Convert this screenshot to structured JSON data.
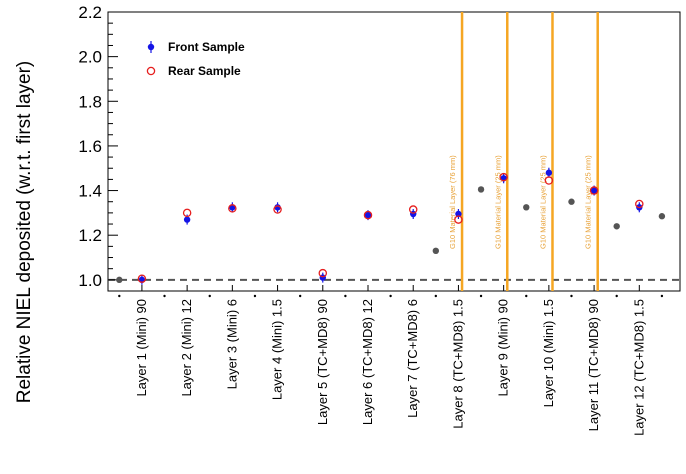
{
  "chart_data": {
    "type": "scatter",
    "title": "",
    "ylabel": "Relative NIEL deposited (w.r.t. first layer)",
    "xlabel": "",
    "ylim": [
      0.95,
      2.2
    ],
    "yticks": [
      1.0,
      1.2,
      1.4,
      1.6,
      1.8,
      2.0,
      2.2
    ],
    "ytick_labels": [
      "1.0",
      "1.2",
      "1.4",
      "1.6",
      "1.8",
      "2.0",
      "2.2"
    ],
    "categories": [
      "Layer 1 (Mini) 90",
      "Layer 2 (Mini) 12",
      "Layer 3 (Mini) 6",
      "Layer 4 (Mini) 1.5",
      "Layer 5 (TC+MD8) 90",
      "Layer 6 (TC+MD8) 12",
      "Layer 7 (TC+MD8) 6",
      "Layer 8 (TC+MD8) 1.5",
      "Layer 9 (Mini) 90",
      "Layer 10 (Mini) 1.5",
      "Layer 11 (TC+MD8) 90",
      "Layer 12 (TC+MD8) 1.5"
    ],
    "series": [
      {
        "name": "Front Sample",
        "color": "#1414e6",
        "marker": "filled-circle",
        "values": [
          1.0,
          1.27,
          1.325,
          1.325,
          1.01,
          1.29,
          1.295,
          1.295,
          1.455,
          1.48,
          1.4,
          1.325
        ]
      },
      {
        "name": "Rear Sample",
        "color": "#e61e1e",
        "marker": "open-circle",
        "values": [
          1.005,
          1.3,
          1.32,
          1.315,
          1.03,
          1.29,
          1.315,
          1.27,
          1.46,
          1.445,
          1.4,
          1.34
        ]
      },
      {
        "color": "#555555",
        "marker": "filled-circle",
        "x": [
          0.5,
          7.5,
          8.5,
          9.5,
          10.5,
          11.5,
          12.5
        ],
        "values": [
          1.0,
          1.13,
          1.405,
          1.325,
          1.35,
          1.24,
          1.285
        ]
      }
    ],
    "reference_line": {
      "y": 1.0,
      "style": "dashed",
      "color": "#555555"
    },
    "legend": {
      "position": "top-left"
    },
    "vertical_lines": {
      "color": "#f5a623",
      "items": [
        {
          "x": 8.08,
          "label": "G10 Material Layer (76 mm)"
        },
        {
          "x": 9.08,
          "label": "G10 Material Layer (25 mm)"
        },
        {
          "x": 10.08,
          "label": "G10 Material Layer (25 mm)"
        },
        {
          "x": 11.08,
          "label": "G10 Material Layer (25 mm)"
        }
      ]
    }
  }
}
